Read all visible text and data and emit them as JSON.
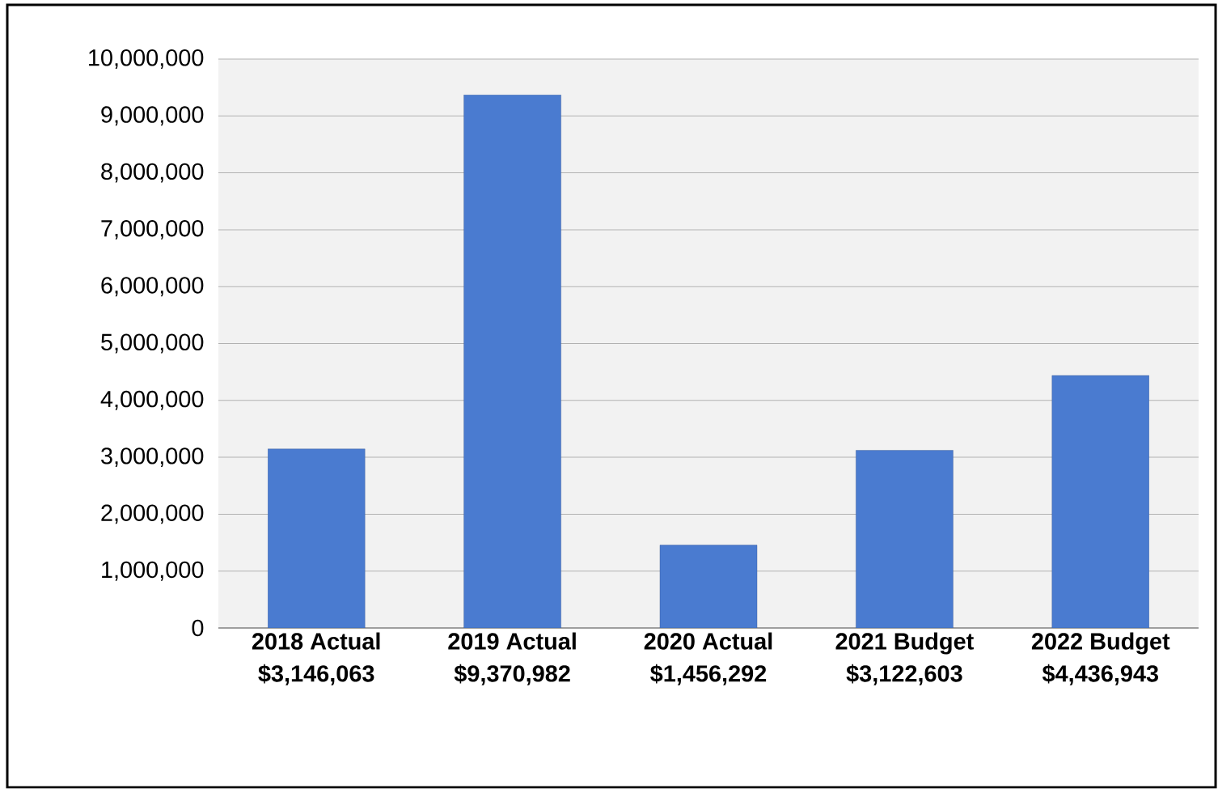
{
  "chart_data": {
    "type": "bar",
    "categories": [
      "2018 Actual",
      "2019 Actual",
      "2020 Actual",
      "2021 Budget",
      "2022 Budget"
    ],
    "values": [
      3146063,
      9370982,
      1456292,
      3122603,
      4436943
    ],
    "value_labels": [
      "$3,146,063",
      "$9,370,982",
      "$1,456,292",
      "$3,122,603",
      "$4,436,943"
    ],
    "color": "#4a7bd0",
    "ylim": [
      0,
      10000000
    ],
    "yticks": [
      {
        "value": 0,
        "label": "0"
      },
      {
        "value": 1000000,
        "label": "1,000,000"
      },
      {
        "value": 2000000,
        "label": "2,000,000"
      },
      {
        "value": 3000000,
        "label": "3,000,000"
      },
      {
        "value": 4000000,
        "label": "4,000,000"
      },
      {
        "value": 5000000,
        "label": "5,000,000"
      },
      {
        "value": 6000000,
        "label": "6,000,000"
      },
      {
        "value": 7000000,
        "label": "7,000,000"
      },
      {
        "value": 8000000,
        "label": "8,000,000"
      },
      {
        "value": 9000000,
        "label": "9,000,000"
      },
      {
        "value": 10000000,
        "label": "10,000,000"
      }
    ],
    "grid": "y"
  }
}
